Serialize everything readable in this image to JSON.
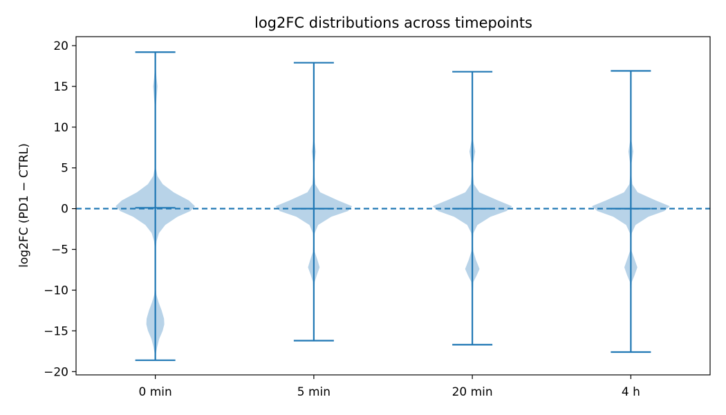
{
  "chart_data": {
    "type": "violin",
    "title": "log2FC distributions across timepoints",
    "xlabel": "",
    "ylabel": "log2FC (PD1 − CTRL)",
    "categories": [
      "0 min",
      "5 min",
      "20 min",
      "4 h"
    ],
    "ylim": [
      -20.4,
      21.1
    ],
    "yticks": [
      20,
      15,
      10,
      5,
      0,
      -5,
      -10,
      -15,
      -20
    ],
    "ytick_labels": [
      "20",
      "15",
      "10",
      "5",
      "0",
      "−5",
      "−10",
      "−15",
      "−20"
    ],
    "reference_line": {
      "y": 0,
      "style": "dashed"
    },
    "grid": false,
    "legend": "none",
    "colors": {
      "line": "#1f77b4",
      "fill": "#b8d3e8"
    },
    "series": [
      {
        "category": "0 min",
        "max": 19.2,
        "min": -18.6,
        "median": 0.1,
        "profile": [
          [
            -18.6,
            0
          ],
          [
            -18.0,
            0.5
          ],
          [
            -17.0,
            2.6
          ],
          [
            -16.0,
            5.6
          ],
          [
            -15.0,
            10.6
          ],
          [
            -14.2,
            13.0
          ],
          [
            -13.5,
            12.6
          ],
          [
            -12.5,
            9.2
          ],
          [
            -11.5,
            4.8
          ],
          [
            -10.6,
            1.6
          ],
          [
            -9.5,
            0.4
          ],
          [
            -8.0,
            0.2
          ],
          [
            -6.0,
            0.3
          ],
          [
            -5.0,
            0.6
          ],
          [
            -4.0,
            1.8
          ],
          [
            -3.0,
            5.3
          ],
          [
            -2.0,
            14.4
          ],
          [
            -1.0,
            32.1
          ],
          [
            -0.3,
            50.7
          ],
          [
            0.3,
            57.4
          ],
          [
            1.0,
            48.6
          ],
          [
            2.0,
            26.5
          ],
          [
            3.0,
            10.7
          ],
          [
            4.0,
            3.0
          ],
          [
            5.0,
            0.8
          ],
          [
            7.0,
            0.3
          ],
          [
            10.0,
            0.3
          ],
          [
            12.5,
            0.8
          ],
          [
            14.0,
            2.2
          ],
          [
            15.0,
            3.2
          ],
          [
            16.0,
            1.8
          ],
          [
            17.5,
            0.4
          ],
          [
            19.2,
            0
          ]
        ]
      },
      {
        "category": "5 min",
        "max": 17.9,
        "min": -16.2,
        "median": 0.0,
        "profile": [
          [
            -16.2,
            0
          ],
          [
            -14.0,
            0.2
          ],
          [
            -11.0,
            0.3
          ],
          [
            -9.0,
            1.3
          ],
          [
            -8.2,
            4.2
          ],
          [
            -7.2,
            8.4
          ],
          [
            -6.3,
            5.3
          ],
          [
            -5.3,
            1.3
          ],
          [
            -4.0,
            0.5
          ],
          [
            -3.0,
            1.3
          ],
          [
            -2.0,
            6.3
          ],
          [
            -1.0,
            25.2
          ],
          [
            -0.3,
            49.4
          ],
          [
            0.3,
            55.4
          ],
          [
            1.0,
            35.2
          ],
          [
            2.0,
            9.2
          ],
          [
            3.0,
            2.0
          ],
          [
            4.5,
            0.5
          ],
          [
            5.5,
            0.8
          ],
          [
            7.0,
            2.8
          ],
          [
            8.5,
            0.6
          ],
          [
            11.0,
            0.2
          ],
          [
            15.0,
            0.1
          ],
          [
            17.9,
            0
          ]
        ]
      },
      {
        "category": "20 min",
        "max": 16.8,
        "min": -16.7,
        "median": 0.0,
        "profile": [
          [
            -16.7,
            0
          ],
          [
            -14.0,
            0.2
          ],
          [
            -11.0,
            0.4
          ],
          [
            -9.0,
            1.5
          ],
          [
            -8.2,
            6.3
          ],
          [
            -7.4,
            10.4
          ],
          [
            -6.3,
            5.3
          ],
          [
            -5.2,
            1.2
          ],
          [
            -4.0,
            0.5
          ],
          [
            -3.0,
            1.5
          ],
          [
            -2.0,
            7.4
          ],
          [
            -1.0,
            26.3
          ],
          [
            -0.3,
            49.4
          ],
          [
            0.3,
            57.4
          ],
          [
            1.0,
            37.2
          ],
          [
            2.0,
            10.1
          ],
          [
            3.0,
            2.2
          ],
          [
            4.5,
            0.5
          ],
          [
            5.5,
            1.0
          ],
          [
            7.0,
            4.2
          ],
          [
            8.5,
            0.8
          ],
          [
            11.0,
            0.2
          ],
          [
            15.0,
            0.1
          ],
          [
            16.8,
            0
          ]
        ]
      },
      {
        "category": "4 h",
        "max": 16.9,
        "min": -17.6,
        "median": 0.0,
        "profile": [
          [
            -17.6,
            0
          ],
          [
            -14.0,
            0.2
          ],
          [
            -11.0,
            0.3
          ],
          [
            -9.0,
            1.4
          ],
          [
            -8.2,
            5.3
          ],
          [
            -7.2,
            9.4
          ],
          [
            -6.2,
            5.3
          ],
          [
            -5.2,
            1.1
          ],
          [
            -4.0,
            0.5
          ],
          [
            -3.0,
            1.4
          ],
          [
            -2.0,
            6.8
          ],
          [
            -1.0,
            25.3
          ],
          [
            -0.3,
            48.4
          ],
          [
            0.3,
            56.4
          ],
          [
            1.0,
            36.2
          ],
          [
            2.0,
            9.8
          ],
          [
            3.0,
            2.1
          ],
          [
            4.5,
            0.5
          ],
          [
            5.5,
            0.9
          ],
          [
            7.0,
            3.5
          ],
          [
            8.5,
            0.7
          ],
          [
            11.0,
            0.2
          ],
          [
            15.0,
            0.1
          ],
          [
            16.9,
            0
          ]
        ]
      }
    ]
  }
}
